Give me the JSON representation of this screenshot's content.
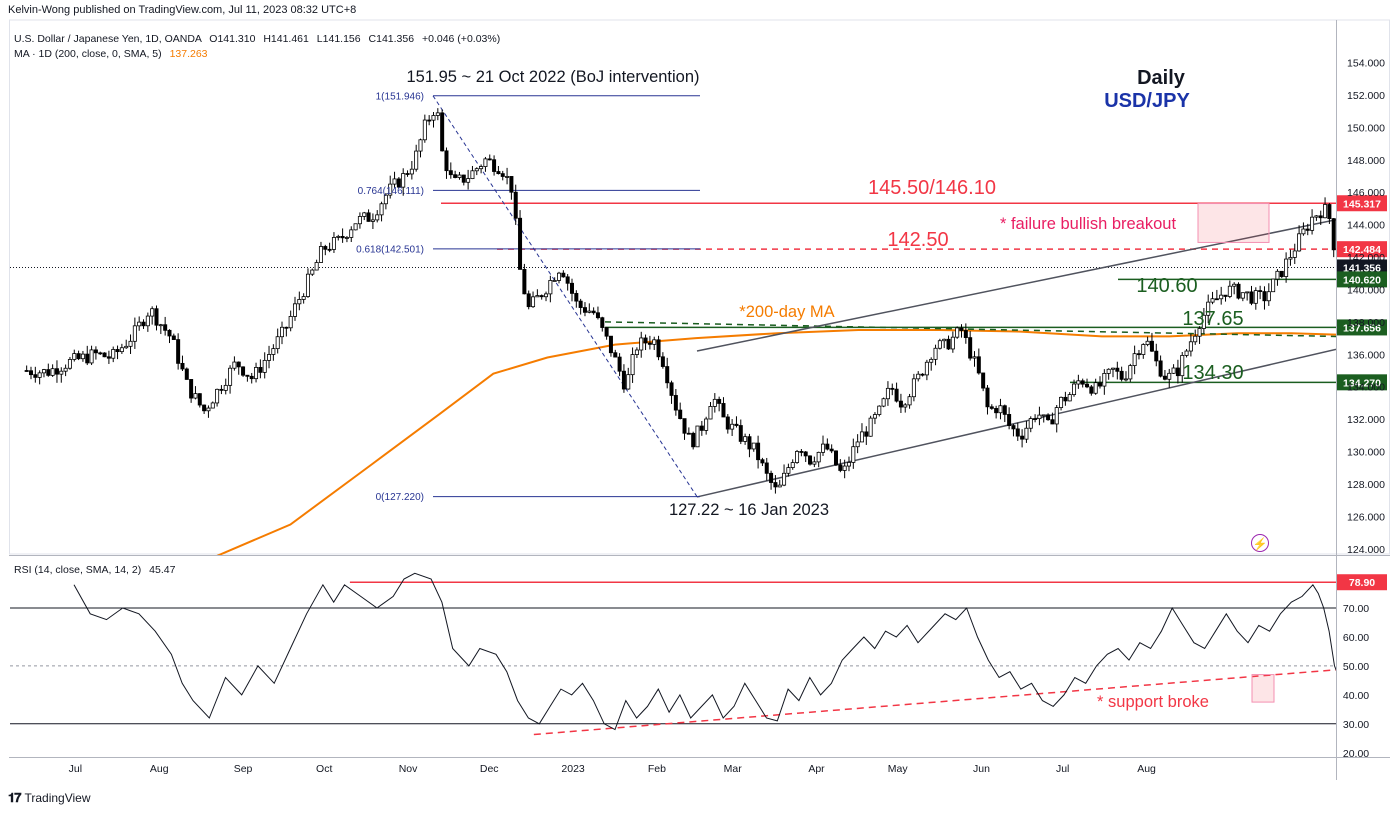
{
  "publisher": "Kelvin-Wong published on TradingView.com, Jul 11, 2023 08:32 UTC+8",
  "footer_brand": "TradingView",
  "chart_data": [
    {
      "type": "line",
      "title": "Daily",
      "subtitle": "USD/JPY",
      "legend": {
        "symbol_line": "U.S. Dollar / Japanese Yen, 1D, OANDA",
        "o": "O141.310",
        "h": "H141.461",
        "l": "L141.156",
        "c": "C141.356",
        "chg": "+0.046 (+0.03%)",
        "ma_label": "MA · 1D (200, close, 0, SMA, 5)",
        "ma_value": "137.263"
      },
      "ylim": [
        123,
        156
      ],
      "yticks": [
        "154.000",
        "152.000",
        "150.000",
        "148.000",
        "146.000",
        "144.000",
        "142.000",
        "140.000",
        "138.000",
        "136.000",
        "134.000",
        "132.000",
        "130.000",
        "128.000",
        "126.000",
        "124.000"
      ],
      "xticks": [
        {
          "label": "Jul",
          "t": 0.5
        },
        {
          "label": "Aug",
          "t": 31.5
        },
        {
          "label": "Sep",
          "t": 62.5
        },
        {
          "label": "Oct",
          "t": 92.5
        },
        {
          "label": "Nov",
          "t": 123.5
        },
        {
          "label": "Dec",
          "t": 153.5
        },
        {
          "label": "2023",
          "t": 184.5
        },
        {
          "label": "Feb",
          "t": 215.5
        },
        {
          "label": "Mar",
          "t": 243.5
        },
        {
          "label": "Apr",
          "t": 274.5
        },
        {
          "label": "May",
          "t": 304.5
        },
        {
          "label": "Jun",
          "t": 335.5
        },
        {
          "label": "Jul",
          "t": 365.5
        },
        {
          "label": "Aug",
          "t": 396.5
        }
      ],
      "price_path": [
        [
          -18,
          135.0
        ],
        [
          -10,
          134.9
        ],
        [
          -2,
          135.5
        ],
        [
          8,
          136.0
        ],
        [
          14,
          135.8
        ],
        [
          22,
          137.2
        ],
        [
          28,
          138.8
        ],
        [
          36,
          137.0
        ],
        [
          42,
          134.0
        ],
        [
          48,
          132.5
        ],
        [
          54,
          134.0
        ],
        [
          60,
          135.5
        ],
        [
          66,
          134.5
        ],
        [
          72,
          136.0
        ],
        [
          78,
          137.5
        ],
        [
          82,
          139.0
        ],
        [
          88,
          141.0
        ],
        [
          92,
          142.5
        ],
        [
          98,
          143.0
        ],
        [
          104,
          144.2
        ],
        [
          110,
          144.5
        ],
        [
          116,
          146.0
        ],
        [
          122,
          147.0
        ],
        [
          126,
          148.0
        ],
        [
          130,
          150.2
        ],
        [
          134,
          151.4
        ],
        [
          136,
          148.5
        ],
        [
          140,
          146.5
        ],
        [
          146,
          147.0
        ],
        [
          152,
          148.0
        ],
        [
          158,
          147.5
        ],
        [
          162,
          146.2
        ],
        [
          165,
          141.0
        ],
        [
          168,
          138.8
        ],
        [
          174,
          140.0
        ],
        [
          180,
          141.5
        ],
        [
          186,
          139.0
        ],
        [
          192,
          138.6
        ],
        [
          198,
          136.5
        ],
        [
          204,
          134.0
        ],
        [
          208,
          136.5
        ],
        [
          214,
          137.0
        ],
        [
          218,
          135.5
        ],
        [
          222,
          133.0
        ],
        [
          228,
          130.5
        ],
        [
          232,
          131.5
        ],
        [
          236,
          133.5
        ],
        [
          240,
          132.0
        ],
        [
          246,
          131.0
        ],
        [
          252,
          130.0
        ],
        [
          256,
          128.5
        ],
        [
          260,
          127.4
        ],
        [
          264,
          129.0
        ],
        [
          268,
          130.5
        ],
        [
          272,
          129.5
        ],
        [
          278,
          130.3
        ],
        [
          284,
          128.5
        ],
        [
          290,
          130.8
        ],
        [
          294,
          131.5
        ],
        [
          298,
          132.5
        ],
        [
          302,
          134.0
        ],
        [
          306,
          133.0
        ],
        [
          312,
          134.5
        ],
        [
          318,
          136.5
        ],
        [
          322,
          136.5
        ],
        [
          328,
          137.5
        ],
        [
          334,
          135.0
        ],
        [
          338,
          132.5
        ],
        [
          342,
          132.8
        ],
        [
          346,
          131.5
        ],
        [
          350,
          131.0
        ],
        [
          356,
          132.5
        ],
        [
          360,
          131.5
        ],
        [
          364,
          133.0
        ],
        [
          368,
          133.5
        ],
        [
          372,
          134.5
        ],
        [
          378,
          133.8
        ],
        [
          384,
          135.0
        ],
        [
          388,
          134.5
        ],
        [
          392,
          136.0
        ],
        [
          396,
          137.0
        ],
        [
          400,
          135.5
        ],
        [
          404,
          134.5
        ],
        [
          408,
          135.0
        ],
        [
          412,
          136.5
        ],
        [
          416,
          138.0
        ],
        [
          420,
          139.0
        ],
        [
          426,
          140.0
        ],
        [
          432,
          139.8
        ],
        [
          436,
          139.5
        ],
        [
          440,
          139.5
        ],
        [
          446,
          141.0
        ],
        [
          452,
          142.8
        ],
        [
          458,
          144.5
        ],
        [
          462,
          145.0
        ],
        [
          464,
          144.5
        ],
        [
          466,
          142.5
        ],
        [
          468,
          141.4
        ]
      ],
      "ma200_path": [
        [
          45,
          123
        ],
        [
          80,
          125.5
        ],
        [
          110,
          129.2
        ],
        [
          135,
          132.3
        ],
        [
          155,
          134.8
        ],
        [
          175,
          135.8
        ],
        [
          200,
          136.6
        ],
        [
          230,
          137.0
        ],
        [
          260,
          137.3
        ],
        [
          290,
          137.5
        ],
        [
          320,
          137.5
        ],
        [
          350,
          137.4
        ],
        [
          380,
          137.1
        ],
        [
          405,
          137.1
        ],
        [
          430,
          137.3
        ],
        [
          450,
          137.3
        ],
        [
          468,
          137.2
        ]
      ],
      "level_labels": {
        "boj": "151.95 ~ 21 Oct 2022 (BoJ intervention)",
        "low": "127.22 ~ 16 Jan 2023",
        "l14550": "145.50/146.10",
        "l14250": "142.50",
        "l14060": "140.60",
        "l13765": "137.65",
        "l13430": "134.30",
        "ma_note": "*200-day MA",
        "failure": "* failure bullish breakout"
      },
      "fib_labels": [
        "1(151.946)",
        "0.764(146.111)",
        "0.618(142.501)",
        "0(127.220)"
      ],
      "price_badges": [
        {
          "value": "145.317",
          "p": 145.317,
          "color": "#f23645"
        },
        {
          "value": "142.484",
          "p": 142.484,
          "color": "#f23645"
        },
        {
          "value": "141.356",
          "p": 141.356,
          "color": "#131722"
        },
        {
          "value": "140.620",
          "p": 140.62,
          "color": "#1b5e20"
        },
        {
          "value": "137.656",
          "p": 137.656,
          "color": "#1b5e20"
        },
        {
          "value": "134.270",
          "p": 134.27,
          "color": "#1b5e20"
        }
      ],
      "colors": {
        "support": "#1b5e20",
        "resistance": "#f23645",
        "ma": "#f57c00",
        "fib": "#283593",
        "candle_up": "#ffffff",
        "candle_down": "#000000"
      }
    },
    {
      "type": "line",
      "title": "",
      "legend": {
        "label": "RSI (14, close, SMA, 14, 2)",
        "value": "45.47"
      },
      "ylim": [
        18,
        86
      ],
      "yticks": [
        "70.00",
        "60.00",
        "50.00",
        "40.00",
        "30.00",
        "20.00"
      ],
      "levels": {
        "overbought": 70,
        "mid": 50,
        "oversold": 30,
        "resistance": 78.9
      },
      "badge": "78.90",
      "note": "* support broke",
      "rsi_path": [
        [
          0,
          78
        ],
        [
          6,
          68
        ],
        [
          12,
          66
        ],
        [
          18,
          70
        ],
        [
          24,
          68
        ],
        [
          30,
          62
        ],
        [
          36,
          54
        ],
        [
          40,
          44
        ],
        [
          44,
          38
        ],
        [
          50,
          32
        ],
        [
          56,
          46
        ],
        [
          62,
          40
        ],
        [
          68,
          50
        ],
        [
          74,
          44
        ],
        [
          80,
          56
        ],
        [
          86,
          68
        ],
        [
          92,
          78
        ],
        [
          96,
          72
        ],
        [
          100,
          78
        ],
        [
          106,
          74
        ],
        [
          112,
          70
        ],
        [
          118,
          74
        ],
        [
          122,
          80
        ],
        [
          126,
          82
        ],
        [
          132,
          80
        ],
        [
          136,
          72
        ],
        [
          140,
          56
        ],
        [
          146,
          50
        ],
        [
          150,
          56
        ],
        [
          156,
          54
        ],
        [
          160,
          48
        ],
        [
          164,
          38
        ],
        [
          168,
          32
        ],
        [
          172,
          30
        ],
        [
          176,
          36
        ],
        [
          180,
          42
        ],
        [
          184,
          40
        ],
        [
          188,
          44
        ],
        [
          192,
          38
        ],
        [
          196,
          30
        ],
        [
          200,
          28
        ],
        [
          204,
          38
        ],
        [
          208,
          32
        ],
        [
          212,
          36
        ],
        [
          216,
          42
        ],
        [
          220,
          34
        ],
        [
          224,
          40
        ],
        [
          228,
          32
        ],
        [
          232,
          36
        ],
        [
          236,
          40
        ],
        [
          240,
          32
        ],
        [
          244,
          36
        ],
        [
          248,
          44
        ],
        [
          252,
          38
        ],
        [
          256,
          32
        ],
        [
          260,
          31
        ],
        [
          264,
          42
        ],
        [
          268,
          38
        ],
        [
          272,
          46
        ],
        [
          276,
          40
        ],
        [
          280,
          44
        ],
        [
          284,
          52
        ],
        [
          288,
          56
        ],
        [
          292,
          60
        ],
        [
          296,
          56
        ],
        [
          300,
          62
        ],
        [
          304,
          60
        ],
        [
          308,
          64
        ],
        [
          312,
          58
        ],
        [
          318,
          64
        ],
        [
          322,
          68
        ],
        [
          326,
          66
        ],
        [
          330,
          70
        ],
        [
          334,
          60
        ],
        [
          338,
          52
        ],
        [
          342,
          46
        ],
        [
          346,
          48
        ],
        [
          350,
          42
        ],
        [
          354,
          44
        ],
        [
          358,
          38
        ],
        [
          362,
          36
        ],
        [
          366,
          40
        ],
        [
          370,
          46
        ],
        [
          374,
          44
        ],
        [
          378,
          50
        ],
        [
          382,
          54
        ],
        [
          386,
          56
        ],
        [
          390,
          52
        ],
        [
          394,
          58
        ],
        [
          398,
          56
        ],
        [
          402,
          62
        ],
        [
          406,
          70
        ],
        [
          410,
          64
        ],
        [
          414,
          58
        ],
        [
          418,
          56
        ],
        [
          422,
          62
        ],
        [
          426,
          68
        ],
        [
          430,
          62
        ],
        [
          434,
          58
        ],
        [
          438,
          64
        ],
        [
          442,
          62
        ],
        [
          446,
          68
        ],
        [
          450,
          72
        ],
        [
          454,
          74
        ],
        [
          458,
          78
        ],
        [
          460,
          75
        ],
        [
          462,
          70
        ],
        [
          464,
          62
        ],
        [
          466,
          50
        ],
        [
          468,
          45.5
        ]
      ],
      "trendline": [
        [
          170,
          26.3
        ],
        [
          495,
          50.8
        ]
      ]
    }
  ]
}
